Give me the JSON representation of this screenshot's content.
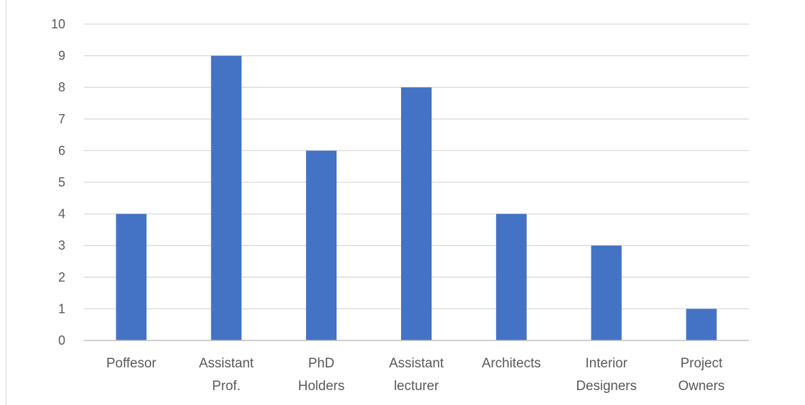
{
  "chart_data": {
    "type": "bar",
    "categories": [
      [
        "Poffesor"
      ],
      [
        "Assistant",
        "Prof."
      ],
      [
        "PhD",
        "Holders"
      ],
      [
        "Assistant",
        "lecturer"
      ],
      [
        "Architects"
      ],
      [
        "Interior",
        "Designers"
      ],
      [
        "Project",
        "Owners"
      ]
    ],
    "values": [
      4,
      9,
      6,
      8,
      4,
      3,
      1
    ],
    "ylim": [
      0,
      10
    ],
    "yticks": [
      "0",
      "1",
      "2",
      "3",
      "4",
      "5",
      "6",
      "7",
      "8",
      "9",
      "10"
    ],
    "grid": true,
    "legend": "none",
    "title": "",
    "xlabel": "",
    "ylabel": "",
    "colors": {
      "bar": "#4472C4",
      "grid": "#d9d9d9",
      "axis": "#bfbfbf",
      "text": "#595959"
    }
  }
}
